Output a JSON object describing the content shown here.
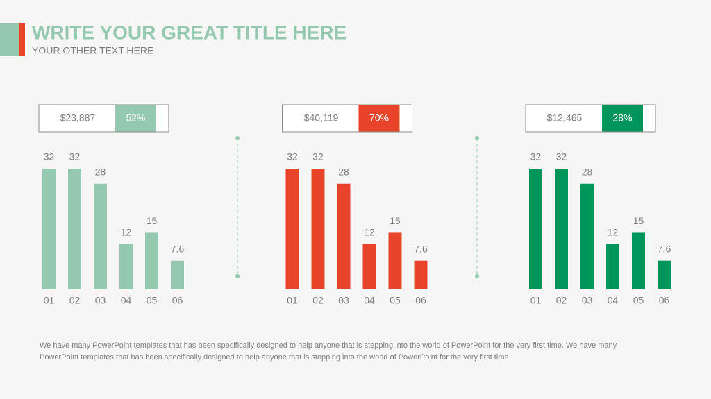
{
  "header": {
    "title": "WRITE YOUR GREAT TITLE HERE",
    "subtitle": "YOUR OTHER TEXT HERE"
  },
  "chart_data": [
    {
      "type": "bar",
      "categories": [
        "01",
        "02",
        "03",
        "04",
        "05",
        "06"
      ],
      "values": [
        32,
        32,
        28,
        12,
        15,
        7.6
      ],
      "color": "#94c9b0",
      "amount": "$23,887",
      "share": {
        "value": 52,
        "label": "52%"
      }
    },
    {
      "type": "bar",
      "categories": [
        "01",
        "02",
        "03",
        "04",
        "05",
        "06"
      ],
      "values": [
        32,
        32,
        28,
        12,
        15,
        7.6
      ],
      "color": "#e8442a",
      "amount": "$40,119",
      "share": {
        "value": 70,
        "label": "70%"
      }
    },
    {
      "type": "bar",
      "categories": [
        "01",
        "02",
        "03",
        "04",
        "05",
        "06"
      ],
      "values": [
        32,
        32,
        28,
        12,
        15,
        7.6
      ],
      "color": "#00965a",
      "amount": "$12,465",
      "share": {
        "value": 28,
        "label": "28%"
      }
    }
  ],
  "footer": "We have many PowerPoint templates that has been specifically designed to help anyone that is stepping into the world of PowerPoint for the very first time. We have many PowerPoint templates that has been specifically designed to help anyone that is stepping into the world of PowerPoint for the very first time."
}
